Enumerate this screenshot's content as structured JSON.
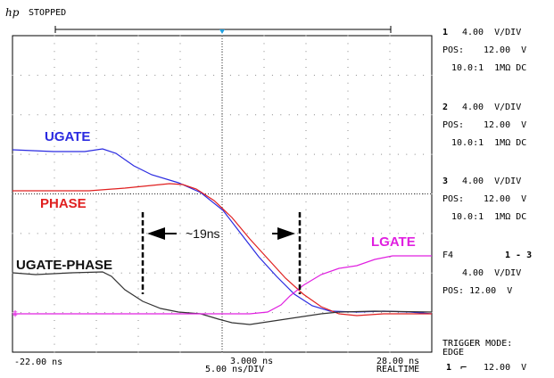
{
  "header": {
    "logo": "hp",
    "status": "STOPPED"
  },
  "channels": [
    {
      "num": "1",
      "scale": "4.00  V/DIV",
      "pos_label": "POS:",
      "pos": "12.00  V",
      "probe": "10.0:1  1MΩ DC"
    },
    {
      "num": "2",
      "scale": "4.00  V/DIV",
      "pos_label": "POS:",
      "pos": "12.00  V",
      "probe": "10.0:1  1MΩ DC"
    },
    {
      "num": "3",
      "scale": "4.00  V/DIV",
      "pos_label": "POS:",
      "pos": "12.00  V",
      "probe": "10.0:1  1MΩ DC"
    }
  ],
  "function": {
    "name": "F4",
    "expr": "1 - 3",
    "scale": "4.00  V/DIV",
    "pos": "POS: 12.00  V"
  },
  "trigger": {
    "mode_label": "TRIGGER MODE:",
    "mode": "EDGE",
    "source": "1",
    "level": "12.00  V"
  },
  "timebase": {
    "left": "-22.00 ns",
    "center": "3.000 ns",
    "scale": "5.00 ns/DIV",
    "right": "28.00 ns",
    "mode": "REALTIME"
  },
  "labels": {
    "ugate": "UGATE",
    "phase": "PHASE",
    "ugate_phase": "UGATE-PHASE",
    "lgate": "LGATE",
    "delay": "~19ns"
  },
  "colors": {
    "ugate": "#2a2ae0",
    "phase": "#e02020",
    "ugate_phase": "#222222",
    "lgate": "#e020e0",
    "grid": "#888888"
  }
}
